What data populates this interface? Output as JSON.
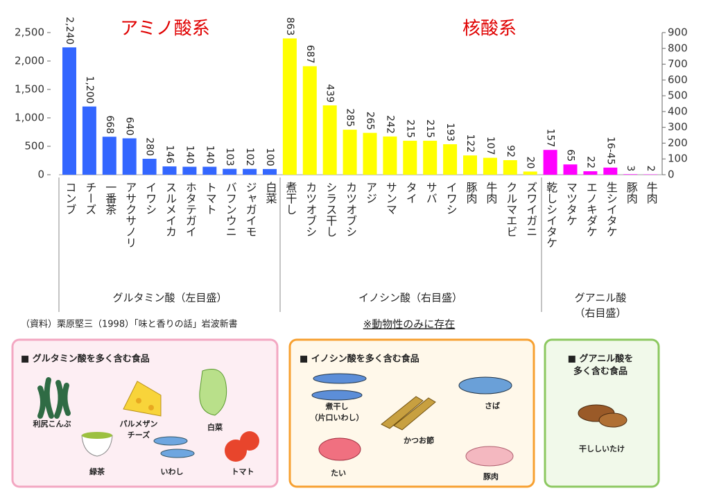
{
  "chart_data": {
    "type": "bar",
    "annotations": [
      "アミノ酸系",
      "核酸系"
    ],
    "categories": [
      "コンブ",
      "チーズ",
      "一番茶",
      "アサクサノリ",
      "イワシ",
      "スルメイカ",
      "ホタテガイ",
      "トマト",
      "バフンウニ",
      "ジャガイモ",
      "白菜",
      "煮干し",
      "カツオブシ",
      "シラス干し",
      "カツオブシ",
      "アジ",
      "サンマ",
      "タイ",
      "サバ",
      "イワシ",
      "豚肉",
      "牛肉",
      "クルマエビ",
      "ズワイガニ",
      "乾しシイタケ",
      "マツタケ",
      "エノキダケ",
      "生シイタケ",
      "豚肉",
      "牛肉"
    ],
    "series": [
      {
        "name": "グルタミン酸",
        "color": "#3366ff",
        "axis": "y",
        "values": [
          2240,
          1200,
          668,
          640,
          280,
          146,
          140,
          140,
          103,
          102,
          100,
          null,
          null,
          null,
          null,
          null,
          null,
          null,
          null,
          null,
          null,
          null,
          null,
          null,
          null,
          null,
          null,
          null,
          null,
          null
        ],
        "value_labels": [
          "2,240",
          "1,200",
          null,
          null,
          null,
          null,
          null,
          null,
          null,
          null,
          null,
          null,
          null,
          null,
          null,
          null,
          null,
          null,
          null,
          null,
          null,
          null,
          null,
          null,
          null,
          null,
          null,
          null,
          null,
          null
        ]
      },
      {
        "name": "イノシン酸",
        "color": "#ffff00",
        "axis": "y2",
        "values": [
          null,
          null,
          null,
          null,
          null,
          null,
          null,
          null,
          null,
          null,
          null,
          863,
          687,
          439,
          285,
          265,
          242,
          215,
          215,
          193,
          122,
          107,
          92,
          20,
          null,
          null,
          null,
          null,
          null,
          null
        ]
      },
      {
        "name": "グアニル酸",
        "color": "#ff00ff",
        "axis": "y2",
        "values": [
          null,
          null,
          null,
          null,
          null,
          null,
          null,
          null,
          null,
          null,
          null,
          null,
          null,
          null,
          null,
          null,
          null,
          null,
          null,
          null,
          null,
          null,
          null,
          null,
          157,
          65,
          22,
          45,
          3,
          2
        ],
        "value_labels": [
          null,
          null,
          null,
          null,
          null,
          null,
          null,
          null,
          null,
          null,
          null,
          null,
          null,
          null,
          null,
          null,
          null,
          null,
          null,
          null,
          null,
          null,
          null,
          null,
          null,
          null,
          null,
          "16-45",
          null,
          null
        ]
      }
    ],
    "group_labels": [
      [
        "グルタミン酸（左目盛）"
      ],
      [
        "イノシン酸（右目盛）"
      ],
      [
        "グアニル酸",
        "（右目盛）"
      ]
    ],
    "ylim": [
      0,
      2500
    ],
    "yticks": [
      0,
      500,
      {
        "value": 1000,
        "label": "1,000"
      },
      {
        "value": 1500,
        "label": "1,500"
      },
      {
        "value": 2000,
        "label": "2,000"
      },
      {
        "value": 2500,
        "label": "2,500"
      }
    ],
    "y2lim": [
      0,
      900
    ],
    "y2ticks": [
      0,
      100,
      200,
      300,
      400,
      500,
      600,
      700,
      800,
      900
    ],
    "source": "（資料）栗原堅三（1998）「味と香りの話」岩波新書",
    "note": "※動物性のみに存在"
  },
  "panels": [
    {
      "title": [
        "■ グルタミン酸を多く含む食品"
      ],
      "items": [
        [
          "利尻こんぶ"
        ],
        [
          "パルメザン",
          "チーズ"
        ],
        [
          "白菜"
        ],
        [
          "緑茶"
        ],
        [
          "いわし"
        ],
        [
          "トマト"
        ]
      ]
    },
    {
      "title": [
        "■ イノシン酸を多く含む食品"
      ],
      "items": [
        [
          "煮干し",
          "（片口いわし）"
        ],
        [
          "かつお節"
        ],
        [
          "さば"
        ],
        [
          "たい"
        ],
        [
          "豚肉"
        ]
      ]
    },
    {
      "title": [
        "■ グアニル酸を",
        "多く含む食品"
      ],
      "items": [
        [
          "干ししいたけ"
        ]
      ]
    }
  ]
}
